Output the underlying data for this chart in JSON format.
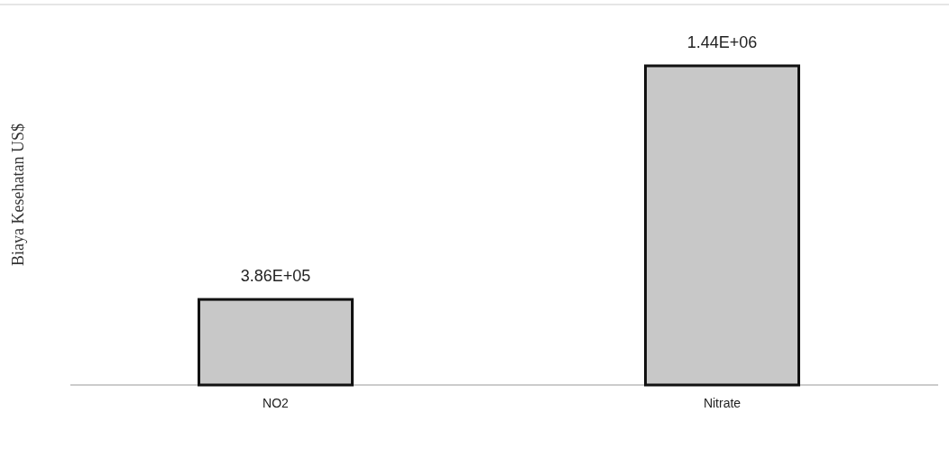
{
  "chart_data": {
    "type": "bar",
    "ylabel": "Biaya Kesehatan  US$",
    "categories": [
      "NO2",
      "Nitrate"
    ],
    "values": [
      386000,
      1440000
    ],
    "value_labels": [
      "3.86E+05",
      "1.44E+06"
    ],
    "color": "#c8c8c8"
  }
}
